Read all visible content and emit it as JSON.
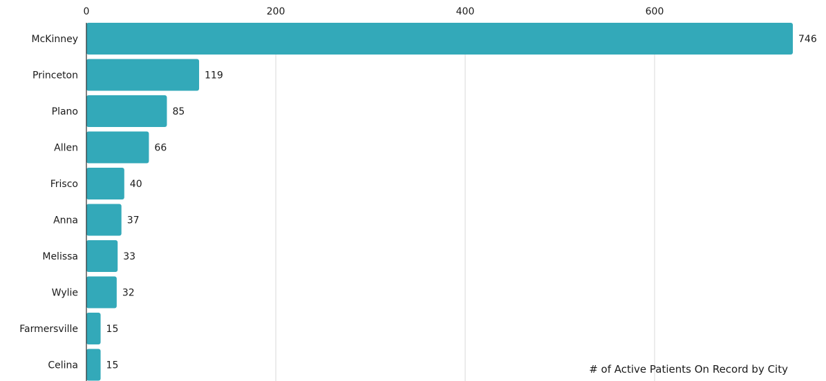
{
  "chart_data": {
    "type": "bar",
    "orientation": "horizontal",
    "categories": [
      "McKinney",
      "Princeton",
      "Plano",
      "Allen",
      "Frisco",
      "Anna",
      "Melissa",
      "Wylie",
      "Farmersville",
      "Celina"
    ],
    "values": [
      746,
      119,
      85,
      66,
      40,
      37,
      33,
      32,
      15,
      15
    ],
    "x_ticks": [
      "0",
      "200",
      "400",
      "600"
    ],
    "xlim": [
      0,
      746
    ],
    "grid": true,
    "axis_position": "top",
    "caption": "# of Active Patients On Record by City",
    "caption_position": "bottom-right",
    "colors": {
      "bar": "#33a9b9",
      "grid": "#d9d9d9",
      "axis": "#2b2b2b",
      "text": "#1a1a1a"
    }
  }
}
